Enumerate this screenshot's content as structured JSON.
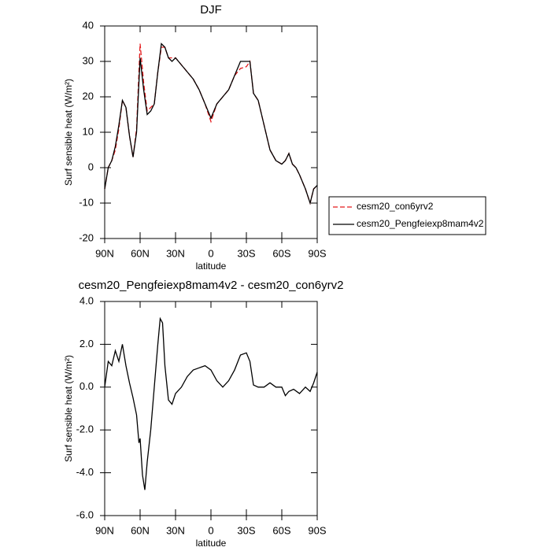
{
  "chart_data": [
    {
      "type": "line",
      "title": "DJF",
      "xlabel": "latitude",
      "ylabel": "Surf sensible heat (W/m²)",
      "x": [
        90,
        87,
        84,
        81,
        78,
        75,
        72,
        69,
        66,
        63,
        60,
        57,
        54,
        51,
        48,
        45,
        42,
        39,
        36,
        33,
        30,
        25,
        20,
        15,
        10,
        5,
        0,
        -5,
        -10,
        -15,
        -20,
        -25,
        -30,
        -33,
        -36,
        -40,
        -45,
        -50,
        -55,
        -60,
        -63,
        -66,
        -69,
        -72,
        -75,
        -80,
        -84,
        -87,
        -90
      ],
      "series": [
        {
          "name": "cesm20_con6yrv2",
          "color": "#e41a1c",
          "dash": true,
          "values": [
            -6,
            0,
            2,
            5,
            11,
            19,
            17,
            9,
            3,
            11,
            35,
            24,
            16,
            17,
            18,
            27,
            34,
            34,
            31,
            31,
            31,
            29,
            27,
            25,
            22,
            18,
            13,
            18,
            20,
            22,
            26,
            28,
            28.5,
            30,
            21,
            19,
            12,
            5,
            2,
            1,
            2,
            4,
            1,
            0,
            -2,
            -6,
            -10,
            -6,
            -5
          ]
        },
        {
          "name": "cesm20_Pengfeiexp8mam4v2",
          "color": "#000000",
          "dash": false,
          "values": [
            -6,
            0,
            2,
            6,
            12,
            19,
            17,
            9,
            3,
            10,
            31,
            22,
            15,
            16,
            18,
            27,
            35,
            34,
            31,
            30,
            31,
            29,
            27,
            25,
            22,
            18,
            14,
            18,
            20,
            22,
            26,
            30,
            30,
            30,
            21,
            19,
            12,
            5,
            2,
            1,
            2,
            4,
            1,
            0,
            -2,
            -6,
            -10,
            -6,
            -5
          ]
        }
      ],
      "xlim": [
        90,
        -90
      ],
      "xticks": [
        {
          "value": 90,
          "label": "90N"
        },
        {
          "value": 60,
          "label": "60N"
        },
        {
          "value": 30,
          "label": "30N"
        },
        0,
        {
          "value": -30,
          "label": "30S"
        },
        {
          "value": -60,
          "label": "60S"
        },
        {
          "value": -90,
          "label": "90S"
        }
      ],
      "ylim": [
        -20,
        40
      ],
      "yticks": [
        -20,
        -10,
        0,
        10,
        20,
        30,
        40
      ],
      "legend": "right"
    },
    {
      "type": "line",
      "title": "cesm20_Pengfeiexp8mam4v2 - cesm20_con6yrv2",
      "xlabel": "latitude",
      "ylabel": "Surf sensible heat (W/m²)",
      "x": [
        90,
        87,
        84,
        81,
        78,
        75,
        72,
        69,
        66,
        63,
        61,
        60,
        58,
        56,
        54,
        51,
        48,
        45,
        43,
        41,
        39,
        36,
        33,
        30,
        25,
        20,
        15,
        10,
        5,
        0,
        -5,
        -10,
        -15,
        -20,
        -25,
        -30,
        -33,
        -36,
        -40,
        -45,
        -50,
        -55,
        -60,
        -63,
        -66,
        -70,
        -75,
        -80,
        -84,
        -87,
        -90
      ],
      "series": [
        {
          "color": "#000000",
          "dash": false,
          "values": [
            0,
            1.2,
            1.0,
            1.7,
            1.2,
            2.0,
            1.0,
            0.2,
            -0.5,
            -1.3,
            -2.6,
            -2.4,
            -4.1,
            -4.8,
            -3.5,
            -2.0,
            0.0,
            2.0,
            3.2,
            3.0,
            1.0,
            -0.6,
            -0.8,
            -0.3,
            0.0,
            0.5,
            0.8,
            0.9,
            1.0,
            0.8,
            0.3,
            0.0,
            0.3,
            0.8,
            1.5,
            1.6,
            1.2,
            0.1,
            0.0,
            0.0,
            0.2,
            0.0,
            0.0,
            -0.4,
            -0.2,
            -0.1,
            -0.3,
            0.0,
            -0.2,
            0.2,
            0.7
          ]
        }
      ],
      "xlim": [
        90,
        -90
      ],
      "xticks": [
        {
          "value": 90,
          "label": "90N"
        },
        {
          "value": 60,
          "label": "60N"
        },
        {
          "value": 30,
          "label": "30N"
        },
        0,
        {
          "value": -30,
          "label": "30S"
        },
        {
          "value": -60,
          "label": "60S"
        },
        {
          "value": -90,
          "label": "90S"
        }
      ],
      "ylim": [
        -6,
        4
      ],
      "yticks": [
        {
          "value": -6,
          "label": "-6.0"
        },
        {
          "value": -4,
          "label": "-4.0"
        },
        {
          "value": -2,
          "label": "-2.0"
        },
        {
          "value": 0,
          "label": "0.0"
        },
        {
          "value": 2,
          "label": "2.0"
        },
        {
          "value": 4,
          "label": "4.0"
        }
      ]
    }
  ]
}
